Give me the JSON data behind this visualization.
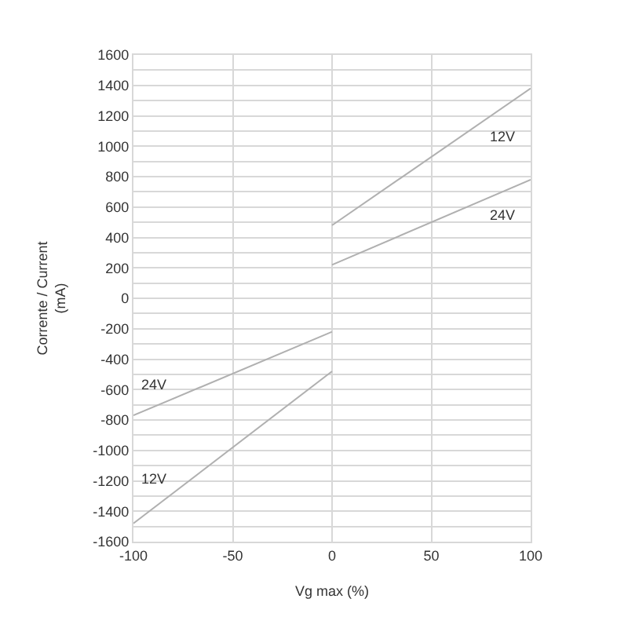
{
  "chart_data": {
    "type": "line",
    "xlabel": "Vg max (%)",
    "ylabel": "Corrente / Current\n(mA)",
    "series": [
      {
        "name": "12V",
        "color": "#b0b0b0",
        "x": [
          -100,
          0
        ],
        "values": [
          -1480,
          -480
        ]
      },
      {
        "name": "12V",
        "color": "#b0b0b0",
        "x": [
          0,
          100
        ],
        "values": [
          480,
          1380
        ]
      },
      {
        "name": "24V",
        "color": "#b0b0b0",
        "x": [
          -100,
          0
        ],
        "values": [
          -770,
          -220
        ]
      },
      {
        "name": "24V",
        "color": "#b0b0b0",
        "x": [
          0,
          100
        ],
        "values": [
          220,
          780
        ]
      }
    ],
    "xlim": [
      -100,
      100
    ],
    "xticks": [
      -100,
      -50,
      0,
      50,
      100
    ],
    "ylim": [
      -1600,
      1600
    ],
    "yticks": [
      -1600,
      {
        "value": -1500,
        "label": null
      },
      -1400,
      {
        "value": -1300,
        "label": null
      },
      -1200,
      {
        "value": -1100,
        "label": null
      },
      -1000,
      {
        "value": -900,
        "label": null
      },
      -800,
      {
        "value": -700,
        "label": null
      },
      -600,
      {
        "value": -500,
        "label": null
      },
      -400,
      {
        "value": -300,
        "label": null
      },
      -200,
      {
        "value": -100,
        "label": null
      },
      0,
      {
        "value": 100,
        "label": null
      },
      200,
      {
        "value": 300,
        "label": null
      },
      400,
      {
        "value": 500,
        "label": null
      },
      600,
      {
        "value": 700,
        "label": null
      },
      800,
      {
        "value": 900,
        "label": null
      },
      1000,
      {
        "value": 1100,
        "label": null
      },
      1200,
      {
        "value": 1300,
        "label": null
      },
      1400,
      {
        "value": 1500,
        "label": null
      },
      1600
    ],
    "grid": true,
    "legend": false,
    "marker": "none",
    "line_style": "solid"
  }
}
